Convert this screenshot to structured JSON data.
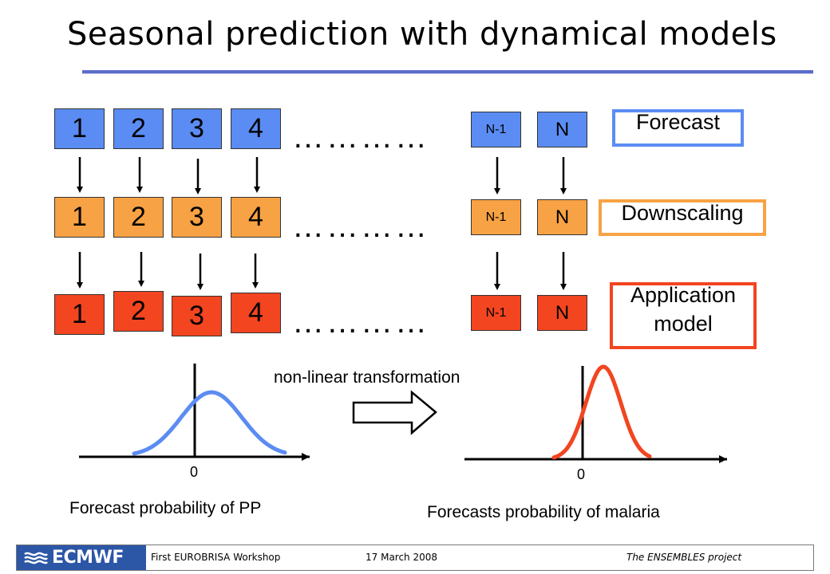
{
  "title": "Seasonal prediction with dynamical models",
  "rows": {
    "forecast": {
      "boxes": [
        "1",
        "2",
        "3",
        "4"
      ],
      "dots": "…………",
      "n_minus_1": "N-1",
      "n": "N",
      "label": "Forecast",
      "color": "#5b8cf3",
      "label_border": "#5b8cf3"
    },
    "downscaling": {
      "boxes": [
        "1",
        "2",
        "3",
        "4"
      ],
      "dots": "…………",
      "n_minus_1": "N-1",
      "n": "N",
      "label": "Downscaling",
      "color": "#f7a244",
      "label_border": "#f7a244"
    },
    "application": {
      "boxes": [
        "1",
        "2",
        "3",
        "4"
      ],
      "dots": "…………",
      "n_minus_1": "N-1",
      "n": "N",
      "label_line1": "Application",
      "label_line2": "model",
      "color": "#f24520",
      "label_border": "#f24520"
    }
  },
  "transformation_label": "non-linear transformation",
  "left_plot": {
    "zero_label": "0",
    "caption": "Forecast probability of PP",
    "curve_color": "#5b8cf3"
  },
  "right_plot": {
    "zero_label": "0",
    "caption": "Forecasts probability of malaria",
    "curve_color": "#f24520"
  },
  "footer": {
    "logo": "ECMWF",
    "workshop": "First EUROBRISA Workshop",
    "date": "17 March 2008",
    "project": "The ENSEMBLES project"
  }
}
